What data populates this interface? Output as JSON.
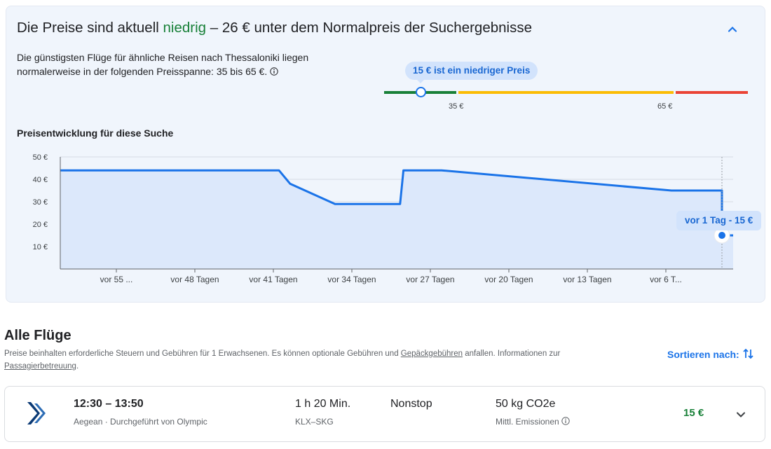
{
  "insights": {
    "headline_pre": "Die Preise sind aktuell ",
    "headline_level": "niedrig",
    "headline_post": " – 26 € unter dem Normalpreis der Suchergebnisse",
    "description": "Die günstigsten Flüge für ähnliche Reisen nach Thessaloniki liegen normalerweise in der folgenden Preisspanne: 35 bis 65 €.",
    "price_bubble": "15 € ist ein niedriger Preis",
    "range": {
      "low_label": "35 €",
      "high_label": "65 €",
      "current_price": 15
    },
    "history_title": "Preisentwicklung für diese Suche",
    "chart_tooltip": "vor 1 Tag - 15 €"
  },
  "chart_data": {
    "type": "line",
    "y_tick_labels": [
      "50 €",
      "40 €",
      "30 €",
      "20 €",
      "10 €"
    ],
    "y_ticks": [
      50,
      40,
      30,
      20,
      10
    ],
    "ylim": [
      0,
      50
    ],
    "x_tick_labels": [
      "vor 55 ...",
      "vor 48 Tagen",
      "vor 41 Tagen",
      "vor 34 Tagen",
      "vor 27 Tagen",
      "vor 20 Tagen",
      "vor 13 Tagen",
      "vor 6 T..."
    ],
    "x_ticks_days_ago": [
      55,
      48,
      41,
      34,
      27,
      20,
      13,
      6
    ],
    "xlim_days_ago": [
      60,
      0
    ],
    "series": [
      {
        "x_days_ago": [
          60,
          40.5,
          39.5,
          35.5,
          34.5,
          33.6,
          32.6,
          32.4,
          31.6,
          30.8,
          29.7,
          29.4,
          28.9,
          28.6,
          28.2,
          27.8,
          26,
          5.5,
          5,
          1,
          1,
          0
        ],
        "values": [
          44,
          44,
          38,
          29,
          29,
          29,
          29,
          29,
          29,
          29,
          29,
          44,
          44,
          44,
          44,
          44,
          44,
          35,
          35,
          35,
          15,
          15
        ]
      }
    ],
    "highlight": {
      "days_ago": 1,
      "value": 15
    },
    "grid": true,
    "legend": "none"
  },
  "alle": {
    "title": "Alle Flüge",
    "note_pre": "Preise beinhalten erforderliche Steuern und Gebühren für 1 Erwachsenen. Es können optionale Gebühren und ",
    "note_link1": "Gepäckgebühren",
    "note_mid": " anfallen. Informationen zur ",
    "note_link2": "Passagierbetreuung",
    "note_end": ".",
    "sort_label": "Sortieren nach:"
  },
  "flight": {
    "times": "12:30 – 13:50",
    "airline": "Aegean · Durchgeführt von Olympic",
    "duration": "1 h 20 Min.",
    "route": "KLX–SKG",
    "stops": "Nonstop",
    "co2": "50 kg CO2e",
    "emissions_label": "Mittl. Emissionen",
    "price": "15 €"
  },
  "colors": {
    "accent": "#1a73e8",
    "low": "#188038",
    "mid": "#fbbc04",
    "high": "#ea4335",
    "line": "#1a73e8",
    "area": "#dce8fb"
  }
}
